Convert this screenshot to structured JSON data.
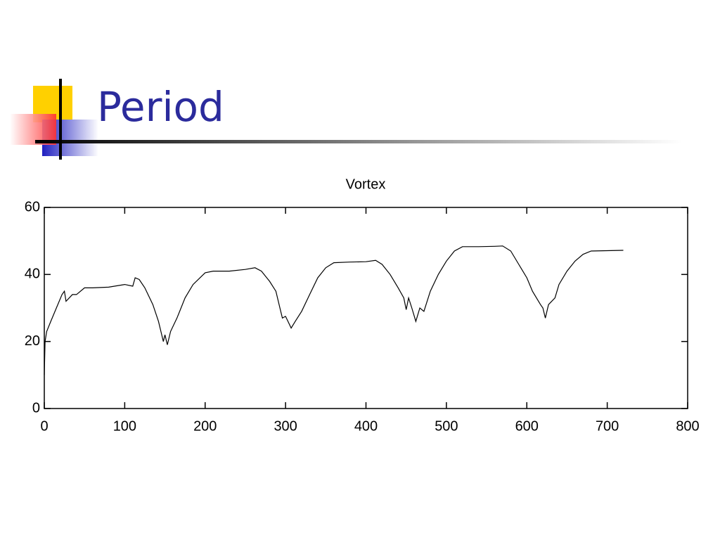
{
  "slide_title": "Period",
  "chart_data": {
    "type": "line",
    "title": "Vortex",
    "x": [
      0,
      1,
      3,
      8,
      15,
      22,
      25,
      27,
      35,
      40,
      50,
      60,
      80,
      100,
      110,
      113,
      118,
      125,
      135,
      142,
      146,
      148,
      150,
      153,
      157,
      165,
      175,
      185,
      200,
      210,
      230,
      250,
      262,
      270,
      280,
      288,
      293,
      296,
      300,
      303,
      307,
      312,
      320,
      330,
      340,
      350,
      360,
      380,
      400,
      412,
      420,
      430,
      440,
      447,
      450,
      453,
      457,
      462,
      467,
      472,
      480,
      490,
      500,
      510,
      520,
      540,
      560,
      570,
      580,
      590,
      600,
      607,
      612,
      617,
      620,
      623,
      627,
      635,
      640,
      650,
      660,
      670,
      680,
      700,
      720
    ],
    "values": [
      10,
      20,
      23,
      26,
      30,
      34,
      35,
      32,
      34,
      34,
      36,
      36,
      36.2,
      37,
      36.5,
      39,
      38.5,
      36,
      31,
      26,
      22,
      20,
      22,
      19,
      23,
      27,
      33,
      37,
      40.5,
      41,
      41,
      41.5,
      42,
      41,
      38,
      35,
      30,
      27,
      27.5,
      26,
      24,
      26,
      29,
      34,
      39,
      42,
      43.5,
      43.7,
      43.8,
      44.2,
      43,
      40,
      36,
      33,
      29.5,
      33,
      30,
      26,
      30,
      29,
      35,
      40,
      44,
      47,
      48.3,
      48.3,
      48.4,
      48.5,
      47,
      43,
      39,
      35,
      33,
      31,
      30,
      27,
      31,
      33,
      37,
      41,
      44,
      46,
      47,
      47.1,
      47.2
    ],
    "color": "#000000",
    "xlim": [
      0,
      800
    ],
    "xticks": [
      0,
      100,
      200,
      300,
      400,
      500,
      600,
      700,
      800
    ],
    "ylim": [
      0,
      60
    ],
    "yticks": [
      0,
      20,
      40,
      60
    ],
    "grid": false
  }
}
